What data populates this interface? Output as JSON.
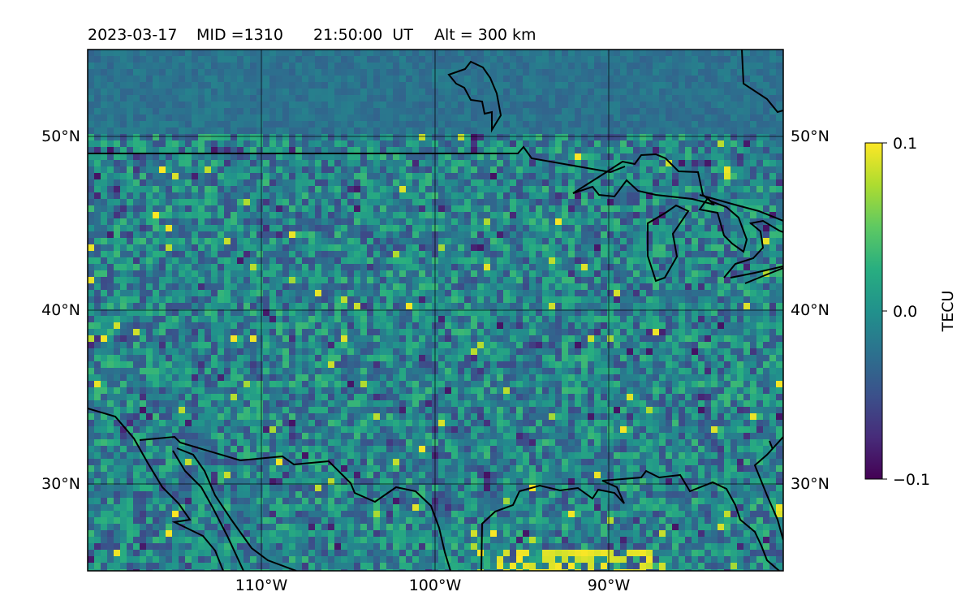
{
  "title": {
    "date": "2023-03-17",
    "mid": "MID =1310",
    "time": "21:50:00  UT",
    "alt": "Alt = 300 km"
  },
  "map": {
    "lon_ticks": [
      "110°W",
      "100°W",
      "90°W"
    ],
    "lat_ticks_left": [
      "50°N",
      "40°N",
      "30°N"
    ],
    "lat_ticks_right": [
      "50°N",
      "40°N",
      "30°N"
    ],
    "extent": {
      "lon_min": -120,
      "lon_max": -80,
      "lat_min": 25,
      "lat_max": 55
    },
    "grid_lons": [
      -110,
      -100,
      -90
    ],
    "grid_lats": [
      50,
      40,
      30
    ]
  },
  "colorbar": {
    "label": "TECU",
    "ticks": [
      "0.1",
      "0.0",
      "−0.1"
    ],
    "vmin": -0.1,
    "vmax": 0.1,
    "colormap": "viridis"
  },
  "colors": {
    "viridis_low": "#440154",
    "viridis_mid": "#21918c",
    "viridis_high": "#fde725",
    "coastline": "#000000"
  }
}
